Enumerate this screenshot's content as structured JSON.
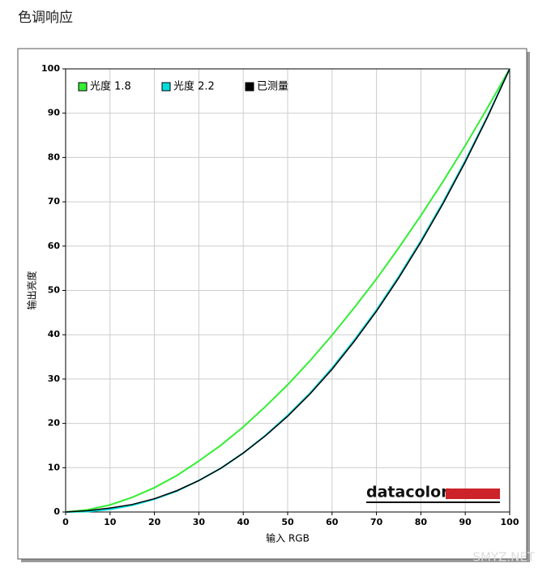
{
  "header": {
    "title": "色调响应"
  },
  "chart_data": {
    "type": "line",
    "xlabel": "输入 RGB",
    "ylabel": "输出亮度",
    "x": [
      0,
      5,
      10,
      15,
      20,
      25,
      30,
      35,
      40,
      45,
      50,
      55,
      60,
      65,
      70,
      75,
      80,
      85,
      90,
      95,
      100
    ],
    "series": [
      {
        "name": "光度 1.8",
        "color": "#33ee33",
        "values": [
          0,
          0.5,
          1.6,
          3.3,
          5.5,
          8.2,
          11.5,
          15.1,
          19.2,
          23.8,
          28.7,
          34.1,
          39.9,
          46.1,
          52.6,
          59.6,
          66.9,
          74.6,
          82.7,
          91.2,
          100
        ]
      },
      {
        "name": "光度 2.2",
        "color": "#00dddd",
        "values": [
          0,
          0.1,
          0.6,
          1.5,
          2.9,
          4.7,
          7.1,
          9.9,
          13.3,
          17.3,
          21.8,
          26.8,
          32.5,
          38.8,
          45.6,
          53.1,
          61.2,
          69.9,
          79.3,
          89.3,
          100
        ]
      },
      {
        "name": "已测量",
        "color": "#000000",
        "values": [
          0,
          0.3,
          0.9,
          1.7,
          3.0,
          4.8,
          7.1,
          9.9,
          13.3,
          17.2,
          21.6,
          26.6,
          32.2,
          38.5,
          45.3,
          52.8,
          60.9,
          69.6,
          79.0,
          89.1,
          100
        ]
      }
    ],
    "xlim": [
      0,
      100
    ],
    "ylim": [
      0,
      100
    ],
    "xticks": [
      0,
      10,
      20,
      30,
      40,
      50,
      60,
      70,
      80,
      90,
      100
    ],
    "yticks": [
      0,
      10,
      20,
      30,
      40,
      50,
      60,
      70,
      80,
      90,
      100
    ],
    "grid": true,
    "legend": "top-left",
    "logo": "datacolor"
  },
  "watermark": "SMYZ.NET"
}
